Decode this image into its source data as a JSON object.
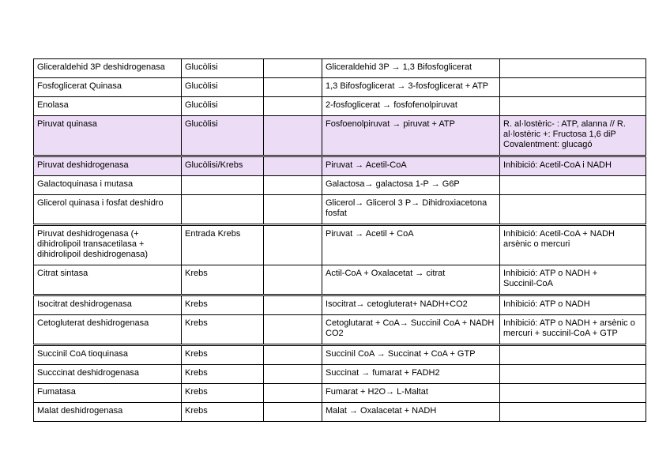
{
  "page": {
    "background": "#ffffff"
  },
  "colors": {
    "highlight": "#ecdcf5",
    "border": "#000000",
    "text": "#000000"
  },
  "table": {
    "rows": [
      {
        "enzyme": "Gliceraldehid 3P deshidrogenasa",
        "pathway": "Glucòlisi",
        "spacer": "",
        "reaction": "Gliceraldehid 3P → 1,3 Bifosfoglicerat",
        "regulation": "",
        "highlighted": false,
        "divider_below": false
      },
      {
        "enzyme": "Fosfoglicerat Quinasa",
        "pathway": "Glucòlisi",
        "spacer": "",
        "reaction": "1,3 Bifosfoglicerat → 3-fosfoglicerat + ATP",
        "regulation": "",
        "highlighted": false,
        "divider_below": false
      },
      {
        "enzyme": "Enolasa",
        "pathway": "Glucòlisi",
        "spacer": "",
        "reaction": "2-fosfoglicerat → fosfofenolpiruvat",
        "regulation": "",
        "highlighted": false,
        "divider_below": false
      },
      {
        "enzyme": "Piruvat quinasa",
        "pathway": "Glucòlisi",
        "spacer": "",
        "reaction": "Fosfoenolpiruvat → piruvat + ATP",
        "regulation": "R. al·lostèric- : ATP, alanna // R.\nal·lostèric +: Fructosa 1,6 diP\nCovalentment: glucagó",
        "highlighted": true,
        "divider_below": true
      },
      {
        "enzyme": "Piruvat deshidrogenasa",
        "pathway": "Glucòlisi/Krebs",
        "spacer": "",
        "reaction": "Piruvat → Acetil-CoA",
        "regulation": "Inhibició: Acetil-CoA i NADH",
        "highlighted": true,
        "divider_below": false
      },
      {
        "enzyme": "Galactoquinasa i mutasa",
        "pathway": "",
        "spacer": "",
        "reaction": "Galactosa→ galactosa 1-P → G6P",
        "regulation": "",
        "highlighted": false,
        "divider_below": false
      },
      {
        "enzyme": "Glicerol quinasa i fosfat deshidro",
        "pathway": "",
        "spacer": "",
        "reaction": "Glicerol→ Glicerol 3 P→ Dihidroxiacetona\nfosfat",
        "regulation": "",
        "highlighted": false,
        "divider_below": true
      },
      {
        "enzyme": "Piruvat deshidrogenasa (+\ndihidrolipoil transacetilasa +\ndihidrolipoil deshidrogenasa)",
        "pathway": "Entrada Krebs",
        "spacer": "",
        "reaction": "Piruvat → Acetil + CoA",
        "regulation": "Inhibició: Acetil-CoA + NADH\narsènic o mercuri",
        "highlighted": false,
        "divider_below": false
      },
      {
        "enzyme": "Citrat sintasa",
        "pathway": "Krebs",
        "spacer": "",
        "reaction": "Actil-CoA + Oxalacetat → citrat",
        "regulation": "Inhibició: ATP o NADH +\nSuccinil-CoA",
        "highlighted": false,
        "divider_below": true
      },
      {
        "enzyme": "Isocitrat deshidrogenasa",
        "pathway": "Krebs",
        "spacer": "",
        "reaction": "Isocitrat→ cetogluterat+ NADH+CO2",
        "regulation": "Inhibició: ATP o NADH",
        "highlighted": false,
        "divider_below": false
      },
      {
        "enzyme": "Cetogluterat deshidrogenasa",
        "pathway": "Krebs",
        "spacer": "",
        "reaction": "Cetoglutarat + CoA→ Succinil CoA + NADH\nCO2",
        "regulation": "Inhibició: ATP o NADH + arsènic o\nmercuri + succinil-CoA + GTP",
        "highlighted": false,
        "divider_below": true
      },
      {
        "enzyme": "Succinil CoA tioquinasa",
        "pathway": "Krebs",
        "spacer": "",
        "reaction": "Succinil CoA → Succinat + CoA + GTP",
        "regulation": "",
        "highlighted": false,
        "divider_below": false
      },
      {
        "enzyme": "Succcinat deshidrogenasa",
        "pathway": "Krebs",
        "spacer": "",
        "reaction": "Succinat → fumarat + FADH2",
        "regulation": "",
        "highlighted": false,
        "divider_below": false
      },
      {
        "enzyme": "Fumatasa",
        "pathway": "Krebs",
        "spacer": "",
        "reaction": "Fumarat + H2O→ L-Maltat",
        "regulation": "",
        "highlighted": false,
        "divider_below": false
      },
      {
        "enzyme": "Malat deshidrogenasa",
        "pathway": "Krebs",
        "spacer": "",
        "reaction": "Malat → Oxalacetat + NADH",
        "regulation": "",
        "highlighted": false,
        "divider_below": false
      }
    ]
  }
}
